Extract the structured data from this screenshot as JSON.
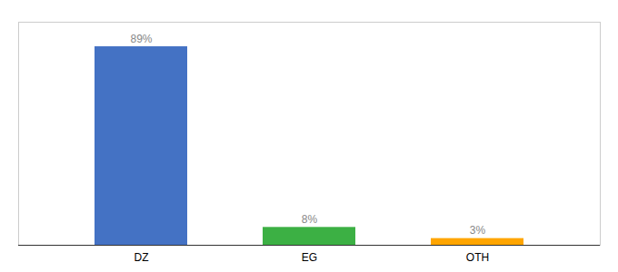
{
  "chart_data": {
    "type": "bar",
    "categories": [
      "DZ",
      "EG",
      "OTH"
    ],
    "values": [
      89,
      8,
      3
    ],
    "value_labels": [
      "89%",
      "8%",
      "3%"
    ],
    "colors": [
      "#4472C4",
      "#3CB044",
      "#FFA500"
    ],
    "ylim": [
      0,
      100
    ],
    "data_labels": true,
    "tick_labels": "x",
    "grid": false
  }
}
